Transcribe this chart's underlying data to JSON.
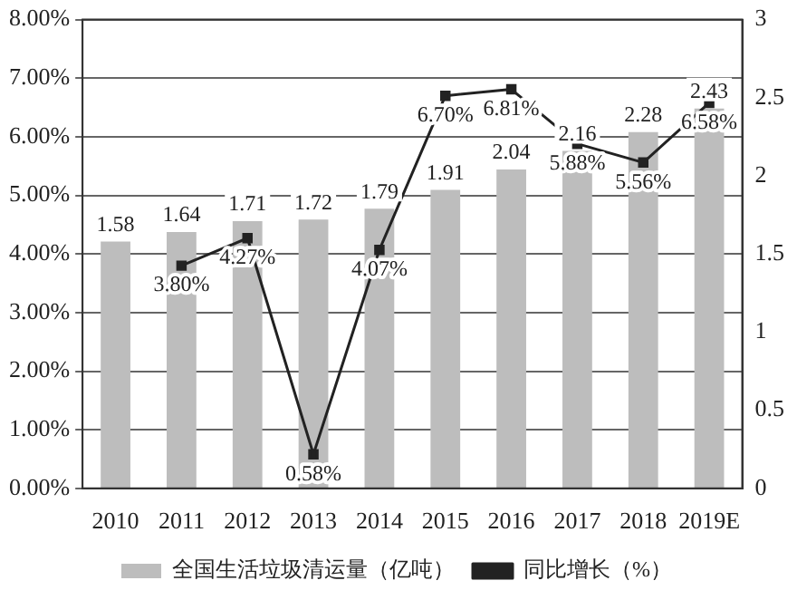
{
  "chart_data": {
    "type": "bar",
    "categories": [
      "2010",
      "2011",
      "2012",
      "2013",
      "2014",
      "2015",
      "2016",
      "2017",
      "2018",
      "2019E"
    ],
    "series": [
      {
        "name": "全国生活垃圾清运量（亿吨）",
        "axis": "y2",
        "color": "#bdbdbd",
        "values": [
          1.58,
          1.64,
          1.71,
          1.72,
          1.79,
          1.91,
          2.04,
          2.16,
          2.28,
          2.43
        ],
        "value_labels": [
          "1.58",
          "1.64",
          "1.71",
          "1.72",
          "1.79",
          "1.91",
          "2.04",
          "2.16",
          "2.28",
          "2.43"
        ]
      },
      {
        "name": "同比增长（%）",
        "type": "line",
        "color": "#222222",
        "marker": "square",
        "values": [
          null,
          3.8,
          4.27,
          0.58,
          4.07,
          6.7,
          6.81,
          5.88,
          5.56,
          6.58
        ],
        "value_labels": [
          null,
          "3.80%",
          "4.27%",
          "0.58%",
          "4.07%",
          "6.70%",
          "6.81%",
          "5.88%",
          "5.56%",
          "6.58%"
        ]
      }
    ],
    "ylim": [
      0,
      8
    ],
    "yticks": [
      {
        "value": 0,
        "label": "0.00%"
      },
      {
        "value": 1,
        "label": "1.00%"
      },
      {
        "value": 2,
        "label": "2.00%"
      },
      {
        "value": 3,
        "label": "3.00%"
      },
      {
        "value": 4,
        "label": "4.00%"
      },
      {
        "value": 5,
        "label": "5.00%"
      },
      {
        "value": 6,
        "label": "6.00%"
      },
      {
        "value": 7,
        "label": "7.00%"
      },
      {
        "value": 8,
        "label": "8.00%"
      }
    ],
    "y2lim": [
      0,
      3
    ],
    "y2ticks": [
      0,
      0.5,
      1,
      1.5,
      2,
      2.5,
      3
    ],
    "grid": "y",
    "legend": "bottom"
  }
}
